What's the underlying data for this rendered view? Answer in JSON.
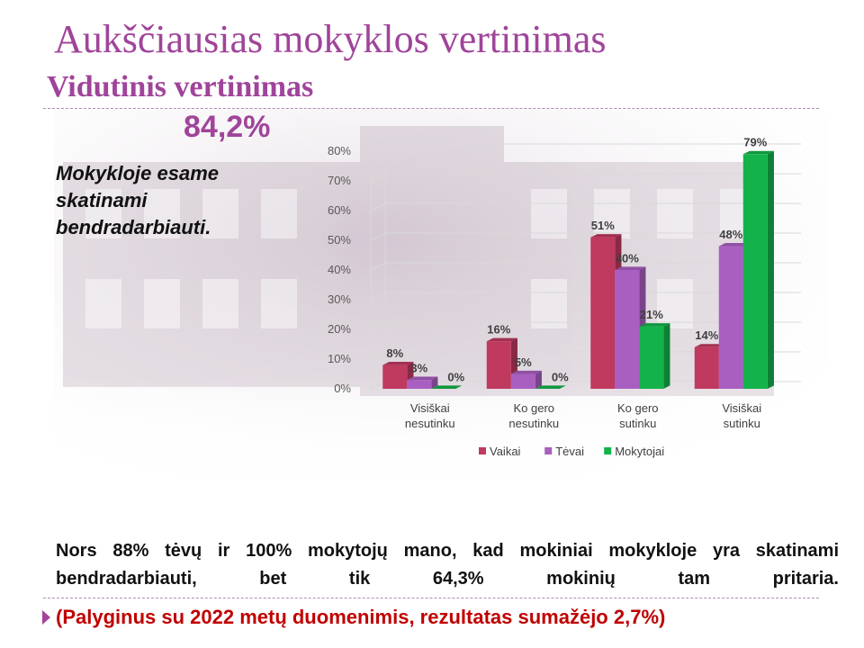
{
  "slide": {
    "title": "Aukščiausias mokyklos vertinimas",
    "subtitle": "Vidutinis vertinimas",
    "average_value": "84,2%",
    "statement": "Mokykloje esame skatinami bendradarbiauti.",
    "note": "Nors 88% tėvų ir 100% mokytojų mano, kad mokiniai mokykloje yra skatinami bendradarbiauti, bet tik 64,3% mokinių tam pritaria.",
    "comparison": "(Palyginus su 2022 metų duomenimis, rezultatas sumažėjo 2,7%)"
  },
  "chart_data": {
    "type": "bar",
    "categories": [
      [
        "Visiškai",
        "nesutinku"
      ],
      [
        "Ko gero",
        "nesutinku"
      ],
      [
        "Ko gero",
        "sutinku"
      ],
      [
        "Visiškai",
        "sutinku"
      ]
    ],
    "series": [
      {
        "name": "Vaikai",
        "color": "#c0395f",
        "values": [
          8,
          16,
          51,
          14
        ]
      },
      {
        "name": "Tėvai",
        "color": "#a95fc0",
        "values": [
          3,
          5,
          40,
          48
        ]
      },
      {
        "name": "Mokytojai",
        "color": "#14b24a",
        "values": [
          0,
          0,
          21,
          79
        ]
      }
    ],
    "ylim": [
      0,
      80
    ],
    "yticks": [
      0,
      10,
      20,
      30,
      40,
      50,
      60,
      70,
      80
    ],
    "value_suffix": "%",
    "grid": true,
    "legend_position": "bottom",
    "three_d": true
  }
}
